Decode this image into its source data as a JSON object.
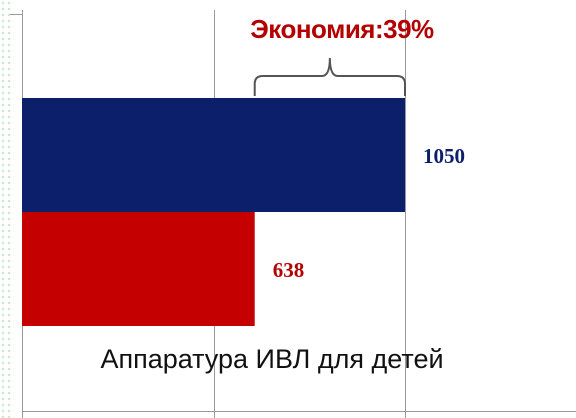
{
  "chart_data": {
    "type": "bar",
    "orientation": "horizontal",
    "categories": [
      "Аппаратура ИВЛ для детей"
    ],
    "series": [
      {
        "values": [
          1050
        ],
        "color": "#0b1f6b"
      },
      {
        "values": [
          638
        ],
        "color": "#c40000"
      }
    ],
    "annotation": "Экономия:39%",
    "annotation_color": "#b30000",
    "value_label_colors": [
      "#0b1f6b",
      "#b30000"
    ],
    "xlim": [
      0,
      1400
    ],
    "xgrid_values": [
      0,
      525,
      1050
    ],
    "grid": true,
    "title": "",
    "xlabel": "",
    "ylabel": ""
  }
}
